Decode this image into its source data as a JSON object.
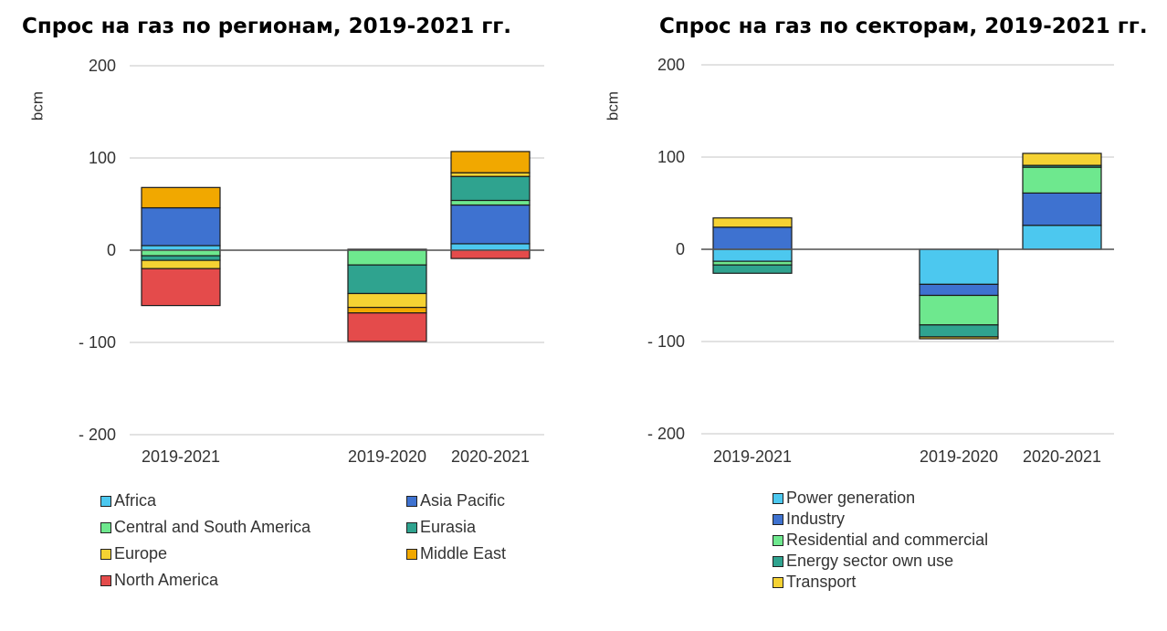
{
  "chart_data": [
    {
      "type": "bar",
      "stacked": true,
      "title": "Спрос на газ по регионам, 2019-2021 гг.",
      "ylabel": "bcm",
      "ylim": [
        -200,
        200
      ],
      "yticks": [
        "200",
        "100",
        "0",
        "- 100",
        "- 200"
      ],
      "ytick_values": [
        200,
        100,
        0,
        -100,
        -200
      ],
      "categories": [
        "2019-2021",
        "2019-2020",
        "2020-2021"
      ],
      "series": [
        {
          "name": "Africa",
          "color": "#4cc8ef",
          "values": [
            5,
            1,
            7
          ]
        },
        {
          "name": "Asia Pacific",
          "color": "#3e72d0",
          "values": [
            41,
            0,
            42
          ]
        },
        {
          "name": "Central and South America",
          "color": "#6ee88e",
          "values": [
            -6,
            -16,
            5
          ]
        },
        {
          "name": "Eurasia",
          "color": "#2fa38f",
          "values": [
            -5,
            -31,
            26
          ]
        },
        {
          "name": "Europe",
          "color": "#f5d233",
          "values": [
            -9,
            -15,
            4
          ]
        },
        {
          "name": "Middle East",
          "color": "#f1a800",
          "values": [
            22,
            -6,
            23
          ]
        },
        {
          "name": "North America",
          "color": "#e44b4b",
          "values": [
            -40,
            -31,
            -9
          ]
        }
      ]
    },
    {
      "type": "bar",
      "stacked": true,
      "title": "Спрос на газ по секторам, 2019-2021 гг.",
      "ylabel": "bcm",
      "ylim": [
        -200,
        200
      ],
      "yticks": [
        "200",
        "100",
        "0",
        "- 100",
        "- 200"
      ],
      "ytick_values": [
        200,
        100,
        0,
        -100,
        -200
      ],
      "categories": [
        "2019-2021",
        "2019-2020",
        "2020-2021"
      ],
      "series": [
        {
          "name": "Power generation",
          "color": "#4cc8ef",
          "values": [
            -13,
            -38,
            26
          ]
        },
        {
          "name": "Industry",
          "color": "#3e72d0",
          "values": [
            24,
            -12,
            35
          ]
        },
        {
          "name": "Residential and commercial",
          "color": "#6ee88e",
          "values": [
            -4,
            -32,
            28
          ]
        },
        {
          "name": "Energy sector own use",
          "color": "#2fa38f",
          "values": [
            -9,
            -13,
            2
          ]
        },
        {
          "name": "Transport",
          "color": "#f5d233",
          "values": [
            10,
            -2,
            13
          ]
        }
      ]
    }
  ]
}
